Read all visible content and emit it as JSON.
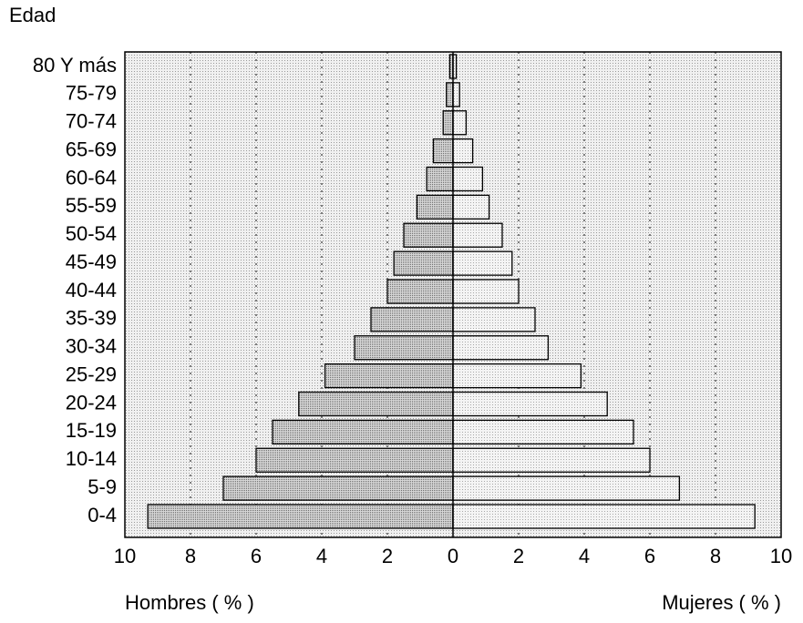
{
  "chart_data": {
    "type": "bar",
    "title": "Edad",
    "categories": [
      "0-4",
      "5-9",
      "10-14",
      "15-19",
      "20-24",
      "25-29",
      "30-34",
      "35-39",
      "40-44",
      "45-49",
      "50-54",
      "55-59",
      "60-64",
      "65-69",
      "70-74",
      "75-79",
      "80 Y más"
    ],
    "series": [
      {
        "name": "Hombres ( % )",
        "color": "#c4c4c4",
        "values": [
          9.3,
          7.0,
          6.0,
          5.5,
          4.7,
          3.9,
          3.0,
          2.5,
          2.0,
          1.8,
          1.5,
          1.1,
          0.8,
          0.6,
          0.3,
          0.2,
          0.1
        ]
      },
      {
        "name": "Mujeres ( % )",
        "color": "#e2e2e2",
        "values": [
          9.2,
          6.9,
          6.0,
          5.5,
          4.7,
          3.9,
          2.9,
          2.5,
          2.0,
          1.8,
          1.5,
          1.1,
          0.9,
          0.6,
          0.4,
          0.2,
          0.1
        ]
      }
    ],
    "xlim": [
      -10,
      10
    ],
    "xticks": [
      {
        "value": -10,
        "label": "10"
      },
      {
        "value": -8,
        "label": "8"
      },
      {
        "value": -6,
        "label": "6"
      },
      {
        "value": -4,
        "label": "4"
      },
      {
        "value": -2,
        "label": "2"
      },
      0,
      2,
      4,
      6,
      8,
      10
    ],
    "grid": true
  }
}
